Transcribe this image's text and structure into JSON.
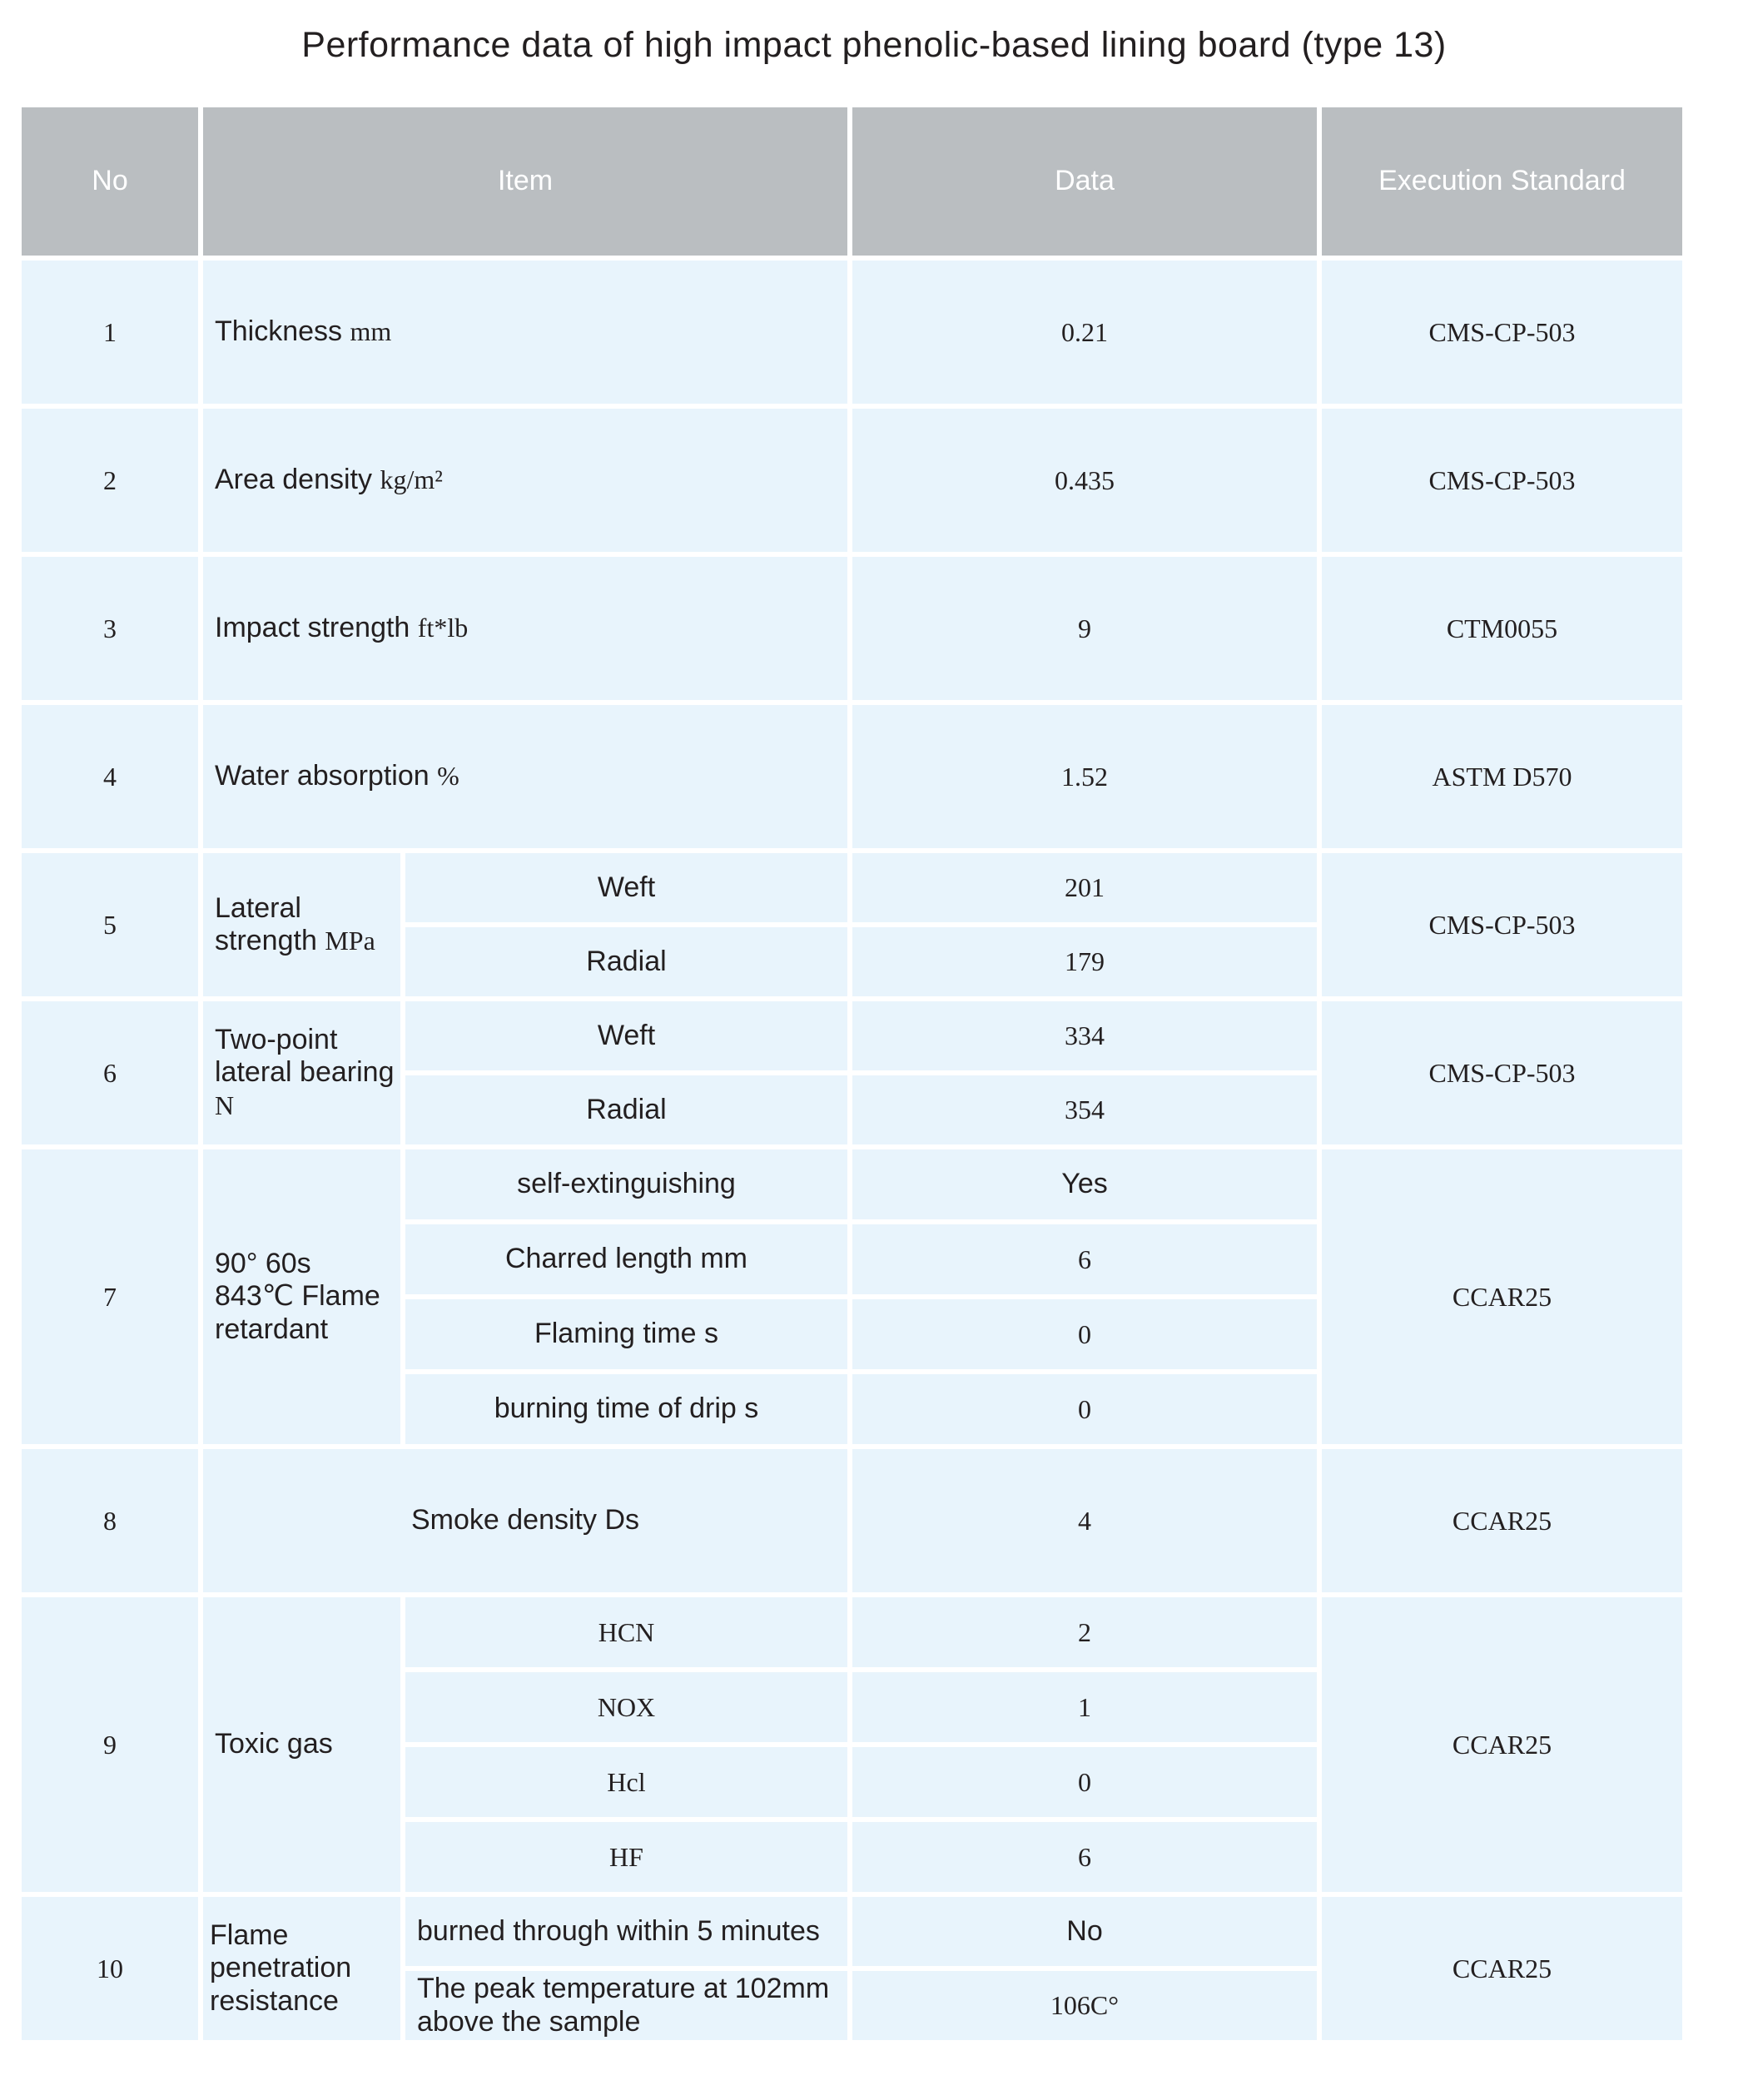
{
  "title": "Performance data of high impact phenolic-based lining board (type 13)",
  "headers": {
    "no": "No",
    "item": "Item",
    "data": "Data",
    "standard": "Execution Standard"
  },
  "rows": [
    {
      "no": "1",
      "item": "Thickness",
      "unit": "mm",
      "data": "0.21",
      "standard": "CMS-CP-503"
    },
    {
      "no": "2",
      "item": "Area density",
      "unit": "kg/m²",
      "data": "0.435",
      "standard": "CMS-CP-503"
    },
    {
      "no": "3",
      "item": "Impact strength",
      "unit": "ft*lb",
      "data": "9",
      "standard": "CTM0055"
    },
    {
      "no": "4",
      "item": "Water absorption",
      "unit": "%",
      "data": "1.52",
      "standard": "ASTM D570"
    },
    {
      "no": "5",
      "item": "Lateral strength",
      "unit": "MPa",
      "standard": "CMS-CP-503",
      "sub": [
        {
          "label": "Weft",
          "data": "201"
        },
        {
          "label": "Radial",
          "data": "179"
        }
      ]
    },
    {
      "no": "6",
      "item": "Two-point lateral bearing",
      "unit": "N",
      "standard": "CMS-CP-503",
      "sub": [
        {
          "label": "Weft",
          "data": "334"
        },
        {
          "label": "Radial",
          "data": "354"
        }
      ]
    },
    {
      "no": "7",
      "item": "90° 60s 843℃ Flame retardant",
      "standard": "CCAR25",
      "sub": [
        {
          "label": "self-extinguishing",
          "data": "Yes"
        },
        {
          "label": "Charred length  mm",
          "data": "6"
        },
        {
          "label": "Flaming time s",
          "data": "0"
        },
        {
          "label": "burning time of drip s",
          "data": "0"
        }
      ]
    },
    {
      "no": "8",
      "item": "Smoke density  Ds",
      "data": "4",
      "standard": "CCAR25"
    },
    {
      "no": "9",
      "item": "Toxic gas",
      "standard": "CCAR25",
      "sub": [
        {
          "label": "HCN",
          "data": "2"
        },
        {
          "label": "NOX",
          "data": "1"
        },
        {
          "label": "Hcl",
          "data": "0"
        },
        {
          "label": "HF",
          "data": "6"
        }
      ]
    },
    {
      "no": "10",
      "item": "Flame penetration resistance",
      "standard": "CCAR25",
      "sub": [
        {
          "label": "burned through within 5 minutes",
          "data": "No"
        },
        {
          "label": "The peak temperature at 102mm above the sample",
          "data": "106C°"
        }
      ]
    }
  ],
  "colors": {
    "header_bg": "#babec1",
    "cell_bg": "#e8f4fc",
    "text": "#231f20"
  }
}
